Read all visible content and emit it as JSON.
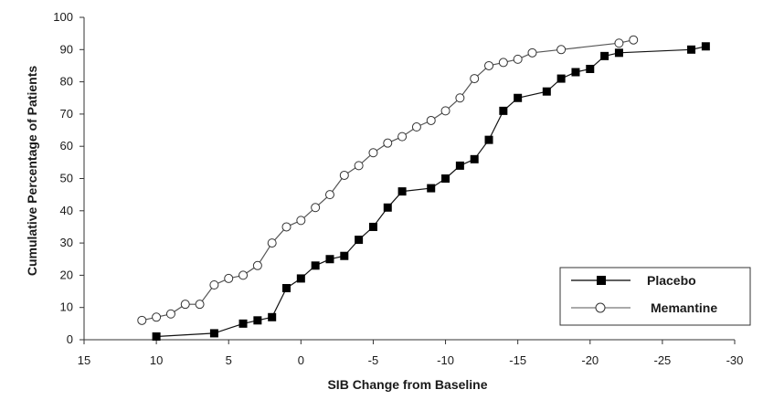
{
  "chart_data": {
    "type": "line",
    "title": "",
    "xlabel": "SIB Change from Baseline",
    "ylabel": "Cumulative Percentage of Patients",
    "xlim": [
      15,
      -30
    ],
    "ylim": [
      0,
      100
    ],
    "x_ticks": [
      15,
      10,
      5,
      0,
      -5,
      -10,
      -15,
      -20,
      -25,
      -30
    ],
    "y_ticks": [
      0,
      10,
      20,
      30,
      40,
      50,
      60,
      70,
      80,
      90,
      100
    ],
    "x_reversed": true,
    "grid": false,
    "legend_position": "bottom-right",
    "series": [
      {
        "name": "Placebo",
        "marker": "filled-square",
        "color": "#000000",
        "points": [
          [
            10,
            1
          ],
          [
            6,
            2
          ],
          [
            4,
            5
          ],
          [
            3,
            6
          ],
          [
            2,
            7
          ],
          [
            1,
            16
          ],
          [
            0,
            19
          ],
          [
            -1,
            23
          ],
          [
            -2,
            25
          ],
          [
            -3,
            26
          ],
          [
            -4,
            31
          ],
          [
            -5,
            35
          ],
          [
            -6,
            41
          ],
          [
            -7,
            46
          ],
          [
            -9,
            47
          ],
          [
            -10,
            50
          ],
          [
            -11,
            54
          ],
          [
            -12,
            56
          ],
          [
            -13,
            62
          ],
          [
            -14,
            71
          ],
          [
            -15,
            75
          ],
          [
            -17,
            77
          ],
          [
            -18,
            81
          ],
          [
            -19,
            83
          ],
          [
            -20,
            84
          ],
          [
            -21,
            88
          ],
          [
            -22,
            89
          ],
          [
            -27,
            90
          ],
          [
            -28,
            91
          ]
        ]
      },
      {
        "name": "Memantine",
        "marker": "open-circle",
        "color": "#000000",
        "points": [
          [
            11,
            6
          ],
          [
            10,
            7
          ],
          [
            9,
            8
          ],
          [
            8,
            11
          ],
          [
            7,
            11
          ],
          [
            6,
            17
          ],
          [
            5,
            19
          ],
          [
            4,
            20
          ],
          [
            3,
            23
          ],
          [
            2,
            30
          ],
          [
            1,
            35
          ],
          [
            0,
            37
          ],
          [
            -1,
            41
          ],
          [
            -2,
            45
          ],
          [
            -3,
            51
          ],
          [
            -4,
            54
          ],
          [
            -5,
            58
          ],
          [
            -6,
            61
          ],
          [
            -7,
            63
          ],
          [
            -8,
            66
          ],
          [
            -9,
            68
          ],
          [
            -10,
            71
          ],
          [
            -11,
            75
          ],
          [
            -12,
            81
          ],
          [
            -13,
            85
          ],
          [
            -14,
            86
          ],
          [
            -15,
            87
          ],
          [
            -16,
            89
          ],
          [
            -18,
            90
          ],
          [
            -22,
            92
          ],
          [
            -23,
            93
          ]
        ]
      }
    ]
  }
}
